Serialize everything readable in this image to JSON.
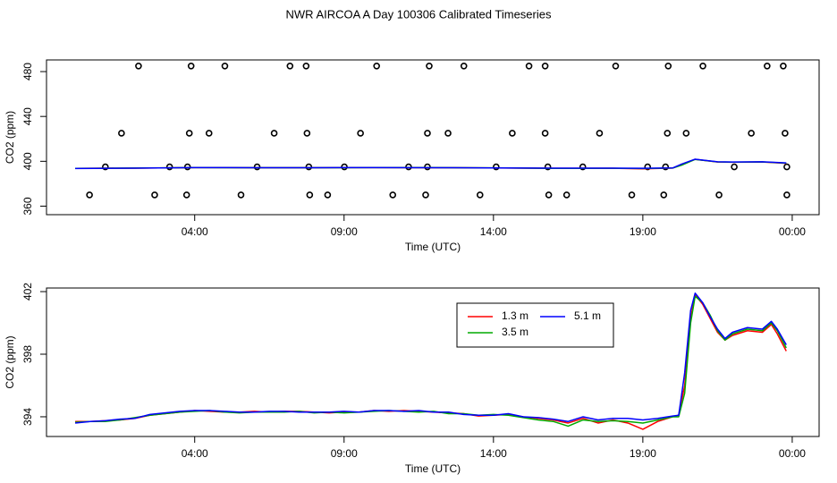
{
  "chart_data": [
    {
      "type": "line",
      "title": "NWR AIRCOA A  Day 100306  Calibrated Timeseries",
      "x_label": "Time (UTC)",
      "y_label": "CO2 (ppm)",
      "xlim": [
        -0.96,
        24.9
      ],
      "ylim": [
        352.4,
        490.4
      ],
      "xticks": [
        {
          "value": 4,
          "label": "04:00"
        },
        {
          "value": 9,
          "label": "09:00"
        },
        {
          "value": 14,
          "label": "14:00"
        },
        {
          "value": 19,
          "label": "19:00"
        },
        {
          "value": 24,
          "label": "00:00"
        }
      ],
      "yticks": [
        360,
        400,
        440,
        480
      ],
      "x": [
        0,
        2,
        4,
        6,
        8,
        10,
        12,
        14,
        16,
        18,
        19,
        20,
        20.3,
        20.75,
        21.5,
        22,
        23,
        23.8
      ],
      "series": [
        {
          "type": "scatter",
          "color": "#000000",
          "x": [
            2.12,
            3.88,
            5.01,
            7.19,
            7.73,
            10.09,
            11.85,
            13.01,
            15.19,
            15.73,
            18.09,
            19.85,
            21.01,
            23.16,
            23.7,
            1.55,
            3.82,
            4.48,
            6.66,
            7.76,
            9.55,
            11.79,
            12.48,
            14.63,
            15.73,
            17.55,
            19.82,
            20.45,
            22.63,
            23.76,
            1.01,
            3.16,
            3.76,
            6.09,
            7.82,
            9.01,
            11.16,
            11.79,
            14.09,
            15.82,
            16.99,
            19.16,
            19.76,
            22.06,
            23.82,
            0.48,
            2.66,
            3.73,
            5.55,
            7.85,
            8.45,
            10.63,
            11.73,
            13.55,
            15.85,
            16.45,
            18.63,
            19.7,
            21.55,
            23.82
          ],
          "values": [
            485,
            485,
            485,
            485,
            485,
            485,
            485,
            485,
            485,
            485,
            485,
            485,
            485,
            485,
            485,
            425,
            425,
            425,
            425,
            425,
            425,
            425,
            425,
            425,
            425,
            425,
            425,
            425,
            425,
            425,
            395,
            395,
            395,
            395,
            395,
            395,
            395,
            395,
            395,
            395,
            395,
            395,
            395,
            395,
            395,
            370,
            370,
            370,
            370,
            370,
            370,
            370,
            370,
            370,
            370,
            370,
            370,
            370,
            370,
            370
          ]
        },
        {
          "type": "line",
          "color": "#ff0000",
          "values": [
            393.7,
            393.9,
            394.4,
            394.3,
            394.3,
            394.4,
            394.3,
            394.1,
            393.8,
            393.8,
            393.3,
            394.0,
            397.0,
            401.8,
            399.4,
            399.2,
            399.4,
            398.2
          ]
        },
        {
          "type": "line",
          "color": "#00aa00",
          "values": [
            393.7,
            393.95,
            394.35,
            394.3,
            394.25,
            394.35,
            394.35,
            394.15,
            393.7,
            393.75,
            393.6,
            394.0,
            396.5,
            401.7,
            399.5,
            399.3,
            399.5,
            398.4
          ]
        },
        {
          "type": "line",
          "color": "#0000ff",
          "values": [
            393.6,
            393.9,
            394.4,
            394.3,
            394.3,
            394.4,
            394.3,
            394.1,
            393.85,
            393.9,
            393.8,
            394.05,
            397.5,
            401.9,
            399.6,
            399.4,
            399.6,
            398.6
          ]
        }
      ]
    },
    {
      "type": "line",
      "x_label": "Time (UTC)",
      "y_label": "CO2 (ppm)",
      "xlim": [
        -0.96,
        24.9
      ],
      "ylim": [
        392.74,
        402.23
      ],
      "xticks": [
        {
          "value": 4,
          "label": "04:00"
        },
        {
          "value": 9,
          "label": "09:00"
        },
        {
          "value": 14,
          "label": "14:00"
        },
        {
          "value": 19,
          "label": "19:00"
        },
        {
          "value": 24,
          "label": "00:00"
        }
      ],
      "yticks": [
        394,
        398,
        402
      ],
      "legend": "inside-top",
      "x": [
        0,
        0.5,
        1,
        1.5,
        2,
        2.5,
        3,
        3.5,
        4,
        4.5,
        5,
        5.5,
        6,
        6.5,
        7,
        7.5,
        8,
        8.5,
        9,
        9.5,
        10,
        10.5,
        11,
        11.5,
        12,
        12.5,
        13,
        13.5,
        14,
        14.5,
        15,
        15.5,
        16,
        16.5,
        17,
        17.5,
        18,
        18.5,
        19,
        19.5,
        20,
        20.2,
        20.4,
        20.6,
        20.75,
        21,
        21.25,
        21.5,
        21.75,
        22,
        22.5,
        23,
        23.3,
        23.5,
        23.8
      ],
      "series": [
        {
          "name": "1.3 m",
          "color": "#ff0000",
          "values": [
            393.7,
            393.7,
            393.75,
            393.8,
            393.9,
            394.1,
            394.2,
            394.3,
            394.4,
            394.35,
            394.3,
            394.3,
            394.35,
            394.3,
            394.35,
            394.35,
            394.3,
            394.25,
            394.3,
            394.3,
            394.4,
            394.35,
            394.4,
            394.35,
            394.3,
            394.25,
            394.2,
            394.05,
            394.1,
            394.15,
            394.0,
            393.9,
            393.8,
            393.6,
            393.9,
            393.6,
            393.8,
            393.6,
            393.2,
            393.7,
            394.0,
            394.1,
            396.0,
            400.3,
            401.8,
            401.2,
            400.3,
            399.4,
            398.9,
            399.2,
            399.5,
            399.4,
            399.9,
            399.3,
            398.2
          ]
        },
        {
          "name": "3.5 m",
          "color": "#00aa00",
          "values": [
            393.65,
            393.7,
            393.7,
            393.8,
            393.95,
            394.1,
            394.2,
            394.3,
            394.35,
            394.4,
            394.3,
            394.25,
            394.3,
            394.3,
            394.3,
            394.35,
            394.25,
            394.3,
            394.25,
            394.3,
            394.35,
            394.4,
            394.35,
            394.3,
            394.35,
            394.2,
            394.2,
            394.1,
            394.15,
            394.1,
            393.95,
            393.8,
            393.7,
            393.4,
            393.8,
            393.7,
            393.75,
            393.7,
            393.6,
            393.8,
            394.0,
            394.0,
            395.5,
            400.0,
            401.7,
            401.3,
            400.5,
            399.5,
            398.9,
            399.3,
            399.6,
            399.5,
            400.0,
            399.5,
            398.4
          ]
        },
        {
          "name": "5.1 m",
          "color": "#0000ff",
          "values": [
            393.6,
            393.7,
            393.75,
            393.85,
            393.9,
            394.15,
            394.25,
            394.35,
            394.4,
            394.4,
            394.35,
            394.3,
            394.3,
            394.35,
            394.35,
            394.3,
            394.3,
            394.3,
            394.35,
            394.3,
            394.4,
            394.4,
            394.35,
            394.4,
            394.3,
            394.3,
            394.15,
            394.1,
            394.1,
            394.2,
            394.0,
            393.95,
            393.85,
            393.7,
            394.0,
            393.8,
            393.9,
            393.9,
            393.8,
            393.9,
            394.05,
            394.1,
            396.8,
            400.8,
            401.9,
            401.3,
            400.4,
            399.6,
            399.0,
            399.4,
            399.7,
            399.6,
            400.1,
            399.6,
            398.6
          ]
        }
      ]
    }
  ]
}
